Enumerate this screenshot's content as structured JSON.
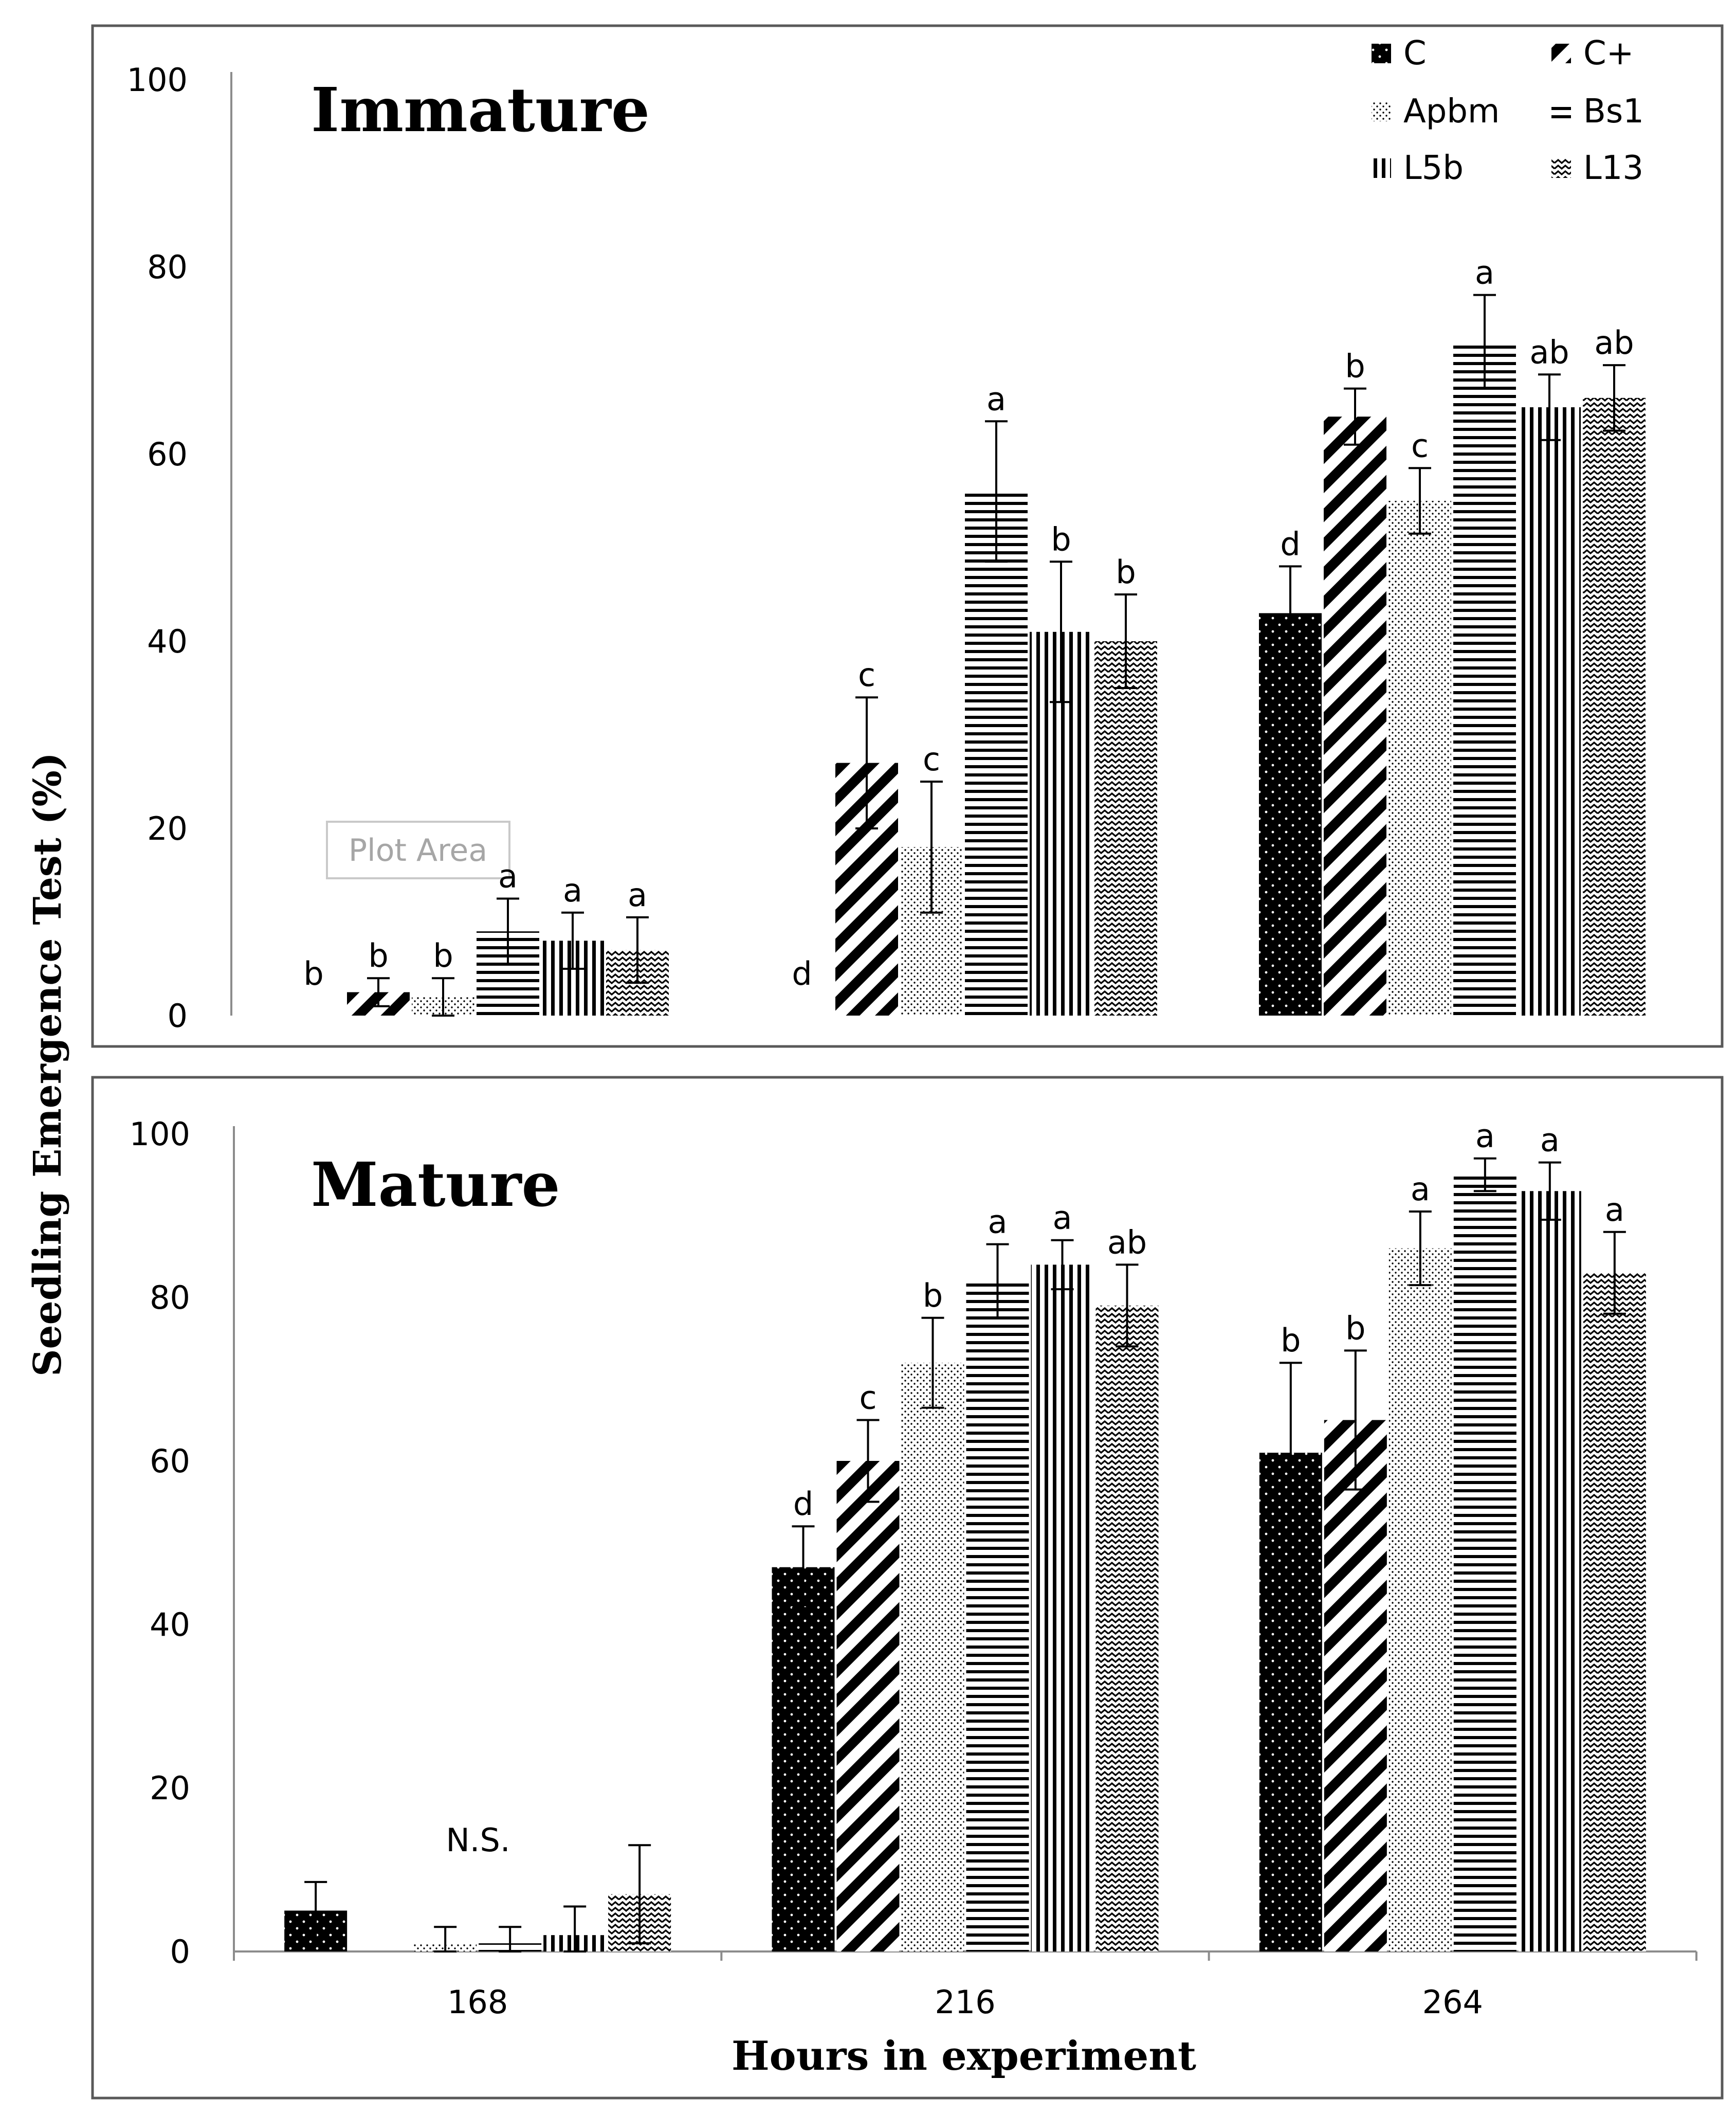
{
  "chart_data": [
    {
      "type": "bar",
      "title": "Immature",
      "categories": [
        "168",
        "216",
        "264"
      ],
      "ylim": [
        0,
        100
      ],
      "yticks": [
        "0",
        "20",
        "40",
        "60",
        "80",
        "100"
      ],
      "series": [
        {
          "name": "C",
          "values": [
            0,
            0,
            43
          ],
          "errors": [
            0,
            0,
            5
          ],
          "letters": [
            "b",
            "d",
            "d"
          ]
        },
        {
          "name": "C+",
          "values": [
            2.5,
            27,
            64
          ],
          "errors": [
            1.5,
            7,
            3
          ],
          "letters": [
            "b",
            "c",
            "b"
          ]
        },
        {
          "name": "Apbm",
          "values": [
            2,
            18,
            55
          ],
          "errors": [
            2,
            7,
            3.5
          ],
          "letters": [
            "b",
            "c",
            "c"
          ]
        },
        {
          "name": "Bs1",
          "values": [
            9,
            56,
            72
          ],
          "errors": [
            3.5,
            7.5,
            5
          ],
          "letters": [
            "a",
            "a",
            "a"
          ]
        },
        {
          "name": "L5b",
          "values": [
            8,
            41,
            65
          ],
          "errors": [
            3,
            7.5,
            3.5
          ],
          "letters": [
            "a",
            "b",
            "ab"
          ]
        },
        {
          "name": "L13",
          "values": [
            7,
            40,
            66
          ],
          "errors": [
            3.5,
            5,
            3.5
          ],
          "letters": [
            "a",
            "b",
            "ab"
          ]
        }
      ],
      "tooltip": "Plot Area"
    },
    {
      "type": "bar",
      "title": "Mature",
      "categories": [
        "168",
        "216",
        "264"
      ],
      "ylim": [
        0,
        100
      ],
      "yticks": [
        "0",
        "20",
        "40",
        "60",
        "80",
        "100"
      ],
      "note": "N.S.",
      "series": [
        {
          "name": "C",
          "values": [
            5,
            47,
            61
          ],
          "errors": [
            3.5,
            5,
            11
          ],
          "letters": [
            "",
            "d",
            "b"
          ]
        },
        {
          "name": "C+",
          "values": [
            0,
            60,
            65
          ],
          "errors": [
            0,
            5,
            8.5
          ],
          "letters": [
            "",
            "c",
            "b"
          ]
        },
        {
          "name": "Apbm",
          "values": [
            1,
            72,
            86
          ],
          "errors": [
            2,
            5.5,
            4.5
          ],
          "letters": [
            "",
            "b",
            "a"
          ]
        },
        {
          "name": "Bs1",
          "values": [
            1,
            82,
            95
          ],
          "errors": [
            2,
            4.5,
            2
          ],
          "letters": [
            "",
            "a",
            "a"
          ]
        },
        {
          "name": "L5b",
          "values": [
            2,
            84,
            93
          ],
          "errors": [
            3.5,
            3,
            3.5
          ],
          "letters": [
            "",
            "a",
            "a"
          ]
        },
        {
          "name": "L13",
          "values": [
            7,
            79,
            83
          ],
          "errors": [
            6,
            5,
            5
          ],
          "letters": [
            "",
            "ab",
            "a"
          ]
        }
      ]
    }
  ],
  "ylabel": "Seedling Emergence Test (%)",
  "xlabel": "Hours in experiment",
  "legend": [
    "C",
    "C+",
    "Apbm",
    "Bs1",
    "L5b",
    "L13"
  ]
}
